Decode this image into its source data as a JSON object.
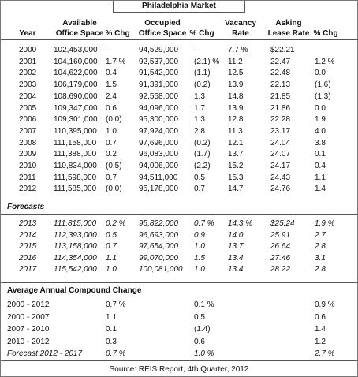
{
  "title": "Philadelphia Market",
  "columns": [
    [
      "Year"
    ],
    [
      "Available",
      "Office Space"
    ],
    [
      "% Chg"
    ],
    [
      "Occupied",
      "Office Space"
    ],
    [
      "% Chg"
    ],
    [
      "Vacancy",
      "Rate"
    ],
    [
      "Asking",
      "Lease Rate"
    ],
    [
      "% Chg"
    ]
  ],
  "history": [
    [
      "2000",
      "102,453,000",
      "—",
      "94,529,000",
      "—",
      "7.7 %",
      "$22.21",
      null
    ],
    [
      "2001",
      "104,160,000",
      "1.7 %",
      "92,537,000",
      "(2.1) %",
      "11.2",
      "22.47",
      "1.2 %"
    ],
    [
      "2002",
      "104,622,000",
      "0.4",
      "91,542,000",
      "(1.1)",
      "12.5",
      "22.48",
      "0.0"
    ],
    [
      "2003",
      "106,179,000",
      "1.5",
      "91,391,000",
      "(0.2)",
      "13.9",
      "22.13",
      "(1.6)"
    ],
    [
      "2004",
      "108,690,000",
      "2.4",
      "92,558,000",
      "1.3",
      "14.8",
      "21.85",
      "(1.3)"
    ],
    [
      "2005",
      "109,347,000",
      "0.6",
      "94,096,000",
      "1.7",
      "13.9",
      "21.86",
      "0.0"
    ],
    [
      "2006",
      "109,301,000",
      "(0.0)",
      "95,300,000",
      "1.3",
      "12.8",
      "22.28",
      "1.9"
    ],
    [
      "2007",
      "110,395,000",
      "1.0",
      "97,924,000",
      "2.8",
      "11.3",
      "23.17",
      "4.0"
    ],
    [
      "2008",
      "111,158,000",
      "0.7",
      "97,696,000",
      "(0.2)",
      "12.1",
      "24.04",
      "3.8"
    ],
    [
      "2009",
      "111,388,000",
      "0.2",
      "96,083,000",
      "(1.7)",
      "13.7",
      "24.07",
      "0.1"
    ],
    [
      "2010",
      "110,834,000",
      "(0.5)",
      "94,006,000",
      "(2.2)",
      "15.2",
      "24.17",
      "0.4"
    ],
    [
      "2011",
      "111,598,000",
      "0.7",
      "94,511,000",
      "0.5",
      "15.3",
      "24.43",
      "1.1"
    ],
    [
      "2012",
      "111,585,000",
      "(0.0)",
      "95,178,000",
      "0.7",
      "14.7",
      "24.76",
      "1.4"
    ]
  ],
  "forecasts_label": "Forecasts",
  "forecasts": [
    [
      "2013",
      "111,815,000",
      "0.2 %",
      "95,822,000",
      "0.7 %",
      "14.3 %",
      "$25.24",
      "1.9 %"
    ],
    [
      "2014",
      "112,393,000",
      "0.5",
      "96,693,000",
      "0.9",
      "14.0",
      "25.91",
      "2.7"
    ],
    [
      "2015",
      "113,158,000",
      "0.7",
      "97,654,000",
      "1.0",
      "13.7",
      "26.64",
      "2.8"
    ],
    [
      "2016",
      "114,354,000",
      "1.1",
      "99,070,000",
      "1.5",
      "13.4",
      "27.46",
      "3.1"
    ],
    [
      "2017",
      "115,542,000",
      "1.0",
      "100,081,000",
      "1.0",
      "13.4",
      "28.22",
      "2.8"
    ]
  ],
  "average_label": "Average Annual Compound Change",
  "average": [
    [
      "2000 - 2012",
      "0.7 %",
      "0.1 %",
      "0.9 %"
    ],
    [
      "2000 - 2007",
      "1.1",
      "0.5",
      "0.6"
    ],
    [
      "2007 - 2010",
      "0.1",
      "(1.4)",
      "1.4"
    ],
    [
      "2010 - 2012",
      "0.3",
      "0.6",
      "1.2"
    ],
    [
      "Forecast 2012 - 2017",
      "0.7 %",
      "1.0 %",
      "2.7 %"
    ]
  ],
  "source": "Source: REIS Report, 4th Quarter, 2012"
}
